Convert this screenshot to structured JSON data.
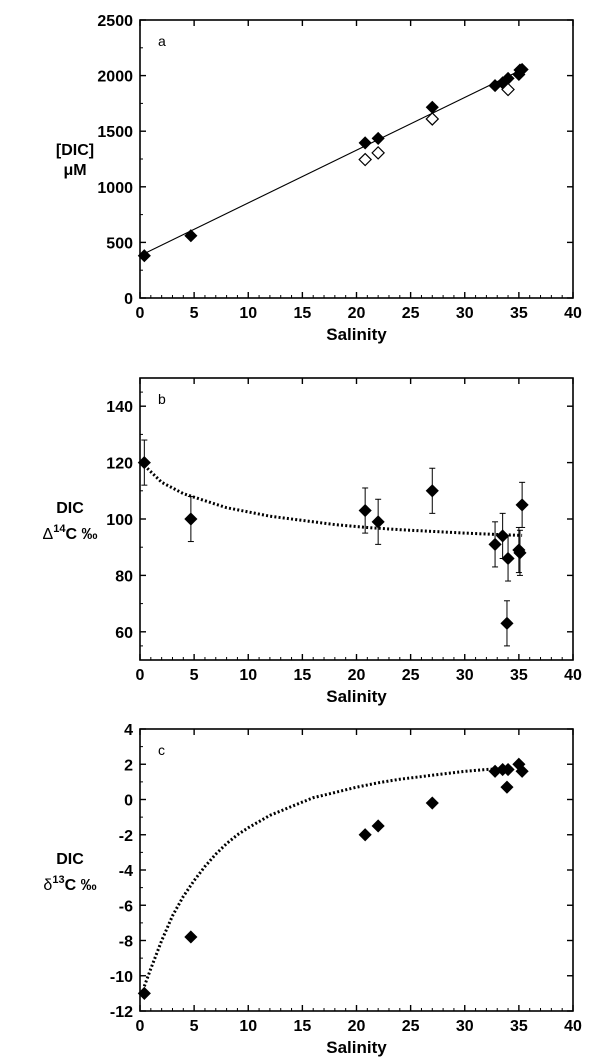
{
  "chart_data": [
    {
      "type": "scatter",
      "panel_label": "a",
      "xlabel": "Salinity",
      "ylabel_lines": [
        "[DIC]",
        "μM"
      ],
      "xlim": [
        0,
        40
      ],
      "ylim": [
        0,
        2500
      ],
      "xticks": [
        0,
        5,
        10,
        15,
        20,
        25,
        30,
        35,
        40
      ],
      "yticks": [
        0,
        500,
        1000,
        1500,
        2000,
        2500
      ],
      "grid": false,
      "series": [
        {
          "marker": "filled-diamond",
          "points": [
            [
              0.4,
              380
            ],
            [
              4.7,
              560
            ],
            [
              20.8,
              1395
            ],
            [
              22.0,
              1435
            ],
            [
              27.0,
              1715
            ],
            [
              32.8,
              1910
            ],
            [
              33.5,
              1935
            ],
            [
              34.0,
              1975
            ],
            [
              35.0,
              2010
            ],
            [
              35.1,
              2050
            ],
            [
              35.3,
              2055
            ]
          ]
        },
        {
          "marker": "open-diamond",
          "points": [
            [
              20.8,
              1245
            ],
            [
              22.0,
              1305
            ],
            [
              27.0,
              1610
            ],
            [
              34.0,
              1875
            ]
          ]
        }
      ],
      "fit_line": {
        "style": "solid",
        "points": [
          [
            0,
            380
          ],
          [
            35.3,
            2055
          ]
        ]
      }
    },
    {
      "type": "scatter",
      "panel_label": "b",
      "xlabel": "Salinity",
      "ylabel_lines": [
        "DIC",
        "Δ",
        "14",
        "C ‰"
      ],
      "xlim": [
        0,
        40
      ],
      "ylim": [
        50,
        150
      ],
      "xticks": [
        0,
        5,
        10,
        15,
        20,
        25,
        30,
        35,
        40
      ],
      "yticks": [
        60,
        80,
        100,
        120,
        140
      ],
      "grid": false,
      "series": [
        {
          "marker": "filled-diamond",
          "points": [
            [
              0.4,
              120,
              8
            ],
            [
              4.7,
              100,
              8
            ],
            [
              20.8,
              103,
              8
            ],
            [
              22.0,
              99,
              8
            ],
            [
              27.0,
              110,
              8
            ],
            [
              32.8,
              91,
              8
            ],
            [
              33.5,
              94,
              8
            ],
            [
              33.9,
              63,
              8
            ],
            [
              34.0,
              86,
              8
            ],
            [
              35.0,
              89,
              8
            ],
            [
              35.1,
              88,
              8
            ],
            [
              35.3,
              105,
              8
            ]
          ]
        }
      ],
      "fit_line": {
        "style": "dotted",
        "points": [
          [
            0.4,
            119
          ],
          [
            2,
            113
          ],
          [
            4,
            109
          ],
          [
            6,
            106.5
          ],
          [
            8,
            104
          ],
          [
            10,
            102.5
          ],
          [
            12,
            101
          ],
          [
            15,
            99.5
          ],
          [
            18,
            98
          ],
          [
            21,
            97
          ],
          [
            24,
            96.2
          ],
          [
            27,
            95.6
          ],
          [
            30,
            95
          ],
          [
            33,
            94.5
          ],
          [
            35.3,
            94.2
          ]
        ]
      }
    },
    {
      "type": "scatter",
      "panel_label": "c",
      "xlabel": "Salinity",
      "ylabel_lines": [
        "DIC",
        "δ",
        "13",
        "C ‰"
      ],
      "xlim": [
        0,
        40
      ],
      "ylim": [
        -12,
        4
      ],
      "xticks": [
        0,
        5,
        10,
        15,
        20,
        25,
        30,
        35,
        40
      ],
      "yticks": [
        -12,
        -10,
        -8,
        -6,
        -4,
        -2,
        0,
        2,
        4
      ],
      "grid": false,
      "series": [
        {
          "marker": "filled-diamond",
          "points": [
            [
              0.4,
              -11.0
            ],
            [
              4.7,
              -7.8
            ],
            [
              20.8,
              -2.0
            ],
            [
              22.0,
              -1.5
            ],
            [
              27.0,
              -0.2
            ],
            [
              32.8,
              1.6
            ],
            [
              33.5,
              1.7
            ],
            [
              33.9,
              0.7
            ],
            [
              34.0,
              1.7
            ],
            [
              35.0,
              2.0
            ],
            [
              35.3,
              1.6
            ]
          ]
        }
      ],
      "fit_line": {
        "style": "dotted",
        "points": [
          [
            0.4,
            -10.6
          ],
          [
            1,
            -9.6
          ],
          [
            2,
            -8.0
          ],
          [
            3,
            -6.6
          ],
          [
            4,
            -5.5
          ],
          [
            5,
            -4.6
          ],
          [
            6,
            -3.8
          ],
          [
            7,
            -3.1
          ],
          [
            8,
            -2.5
          ],
          [
            9,
            -2.0
          ],
          [
            10,
            -1.6
          ],
          [
            12,
            -0.9
          ],
          [
            14,
            -0.4
          ],
          [
            16,
            0.1
          ],
          [
            18,
            0.4
          ],
          [
            20,
            0.7
          ],
          [
            22,
            0.95
          ],
          [
            24,
            1.15
          ],
          [
            26,
            1.3
          ],
          [
            28,
            1.45
          ],
          [
            30,
            1.6
          ],
          [
            32,
            1.7
          ],
          [
            33.5,
            1.75
          ]
        ]
      }
    }
  ]
}
